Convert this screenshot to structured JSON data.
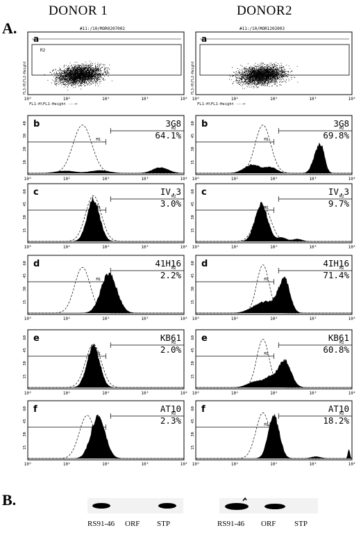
{
  "header": {
    "donor1": "DONOR 1",
    "donor2": "DONOR2"
  },
  "section_a": "A.",
  "section_b": "B.",
  "file_titles": [
    "#11:/10/MOR0207002",
    "#11:/10/MOR1202003"
  ],
  "scatter": {
    "label": "a",
    "gate": "R2",
    "xlabel": "FL1-H\\FL1-Height --->",
    "ylabel": "FL3-H\\FL2-Height"
  },
  "axis_ticks": [
    "10⁰",
    "10¹",
    "10²",
    "10³",
    "10⁴"
  ],
  "marker_labels": [
    "M1",
    "M2"
  ],
  "histograms": [
    {
      "label": "b",
      "antibody": "3G8",
      "donor1_pct": "64.1%",
      "donor2_pct": "69.8%",
      "d1_ymax": "40",
      "d2_ymax": "60"
    },
    {
      "label": "c",
      "antibody1": "IV.3",
      "antibody2": "IV.3",
      "donor1_pct": "3.0%",
      "donor2_pct": "9.7%",
      "d1_ymax": "60",
      "d2_ymax": "60"
    },
    {
      "label": "d",
      "antibody1": "41H16",
      "antibody2": "4IH16",
      "donor1_pct": "2.2%",
      "donor2_pct": "71.4%",
      "d1_ymax": "60",
      "d2_ymax": "60"
    },
    {
      "label": "e",
      "antibody1": "KB61",
      "antibody2": "KB61",
      "donor1_pct": "2.0%",
      "donor2_pct": "60.8%",
      "d1_ymax": "60",
      "d2_ymax": "60"
    },
    {
      "label": "f",
      "antibody1": "AT10",
      "antibody2": "AT10",
      "donor1_pct": "2.3%",
      "donor2_pct": "18.2%",
      "d1_ymax": "60",
      "d2_ymax": "60"
    }
  ],
  "blot": {
    "lanes": [
      "RS91-46",
      "ORF",
      "STP"
    ]
  }
}
